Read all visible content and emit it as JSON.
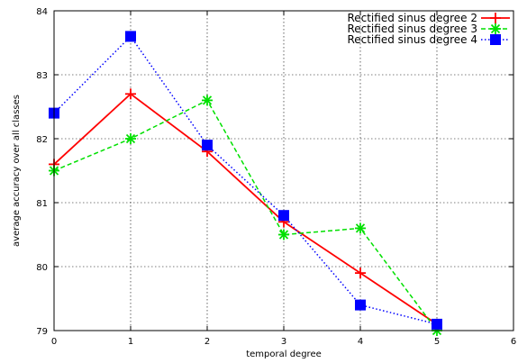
{
  "chart_data": {
    "type": "line",
    "xlabel": "temporal degree",
    "ylabel": "average accuracy over all classes",
    "xlim": [
      0,
      6
    ],
    "ylim": [
      79,
      84
    ],
    "xticks": [
      "0",
      "1",
      "2",
      "3",
      "4",
      "5",
      "6"
    ],
    "yticks": [
      "79",
      "80",
      "81",
      "82",
      "83",
      "84"
    ],
    "grid": true,
    "legend_position": "top-right",
    "series": [
      {
        "name": "Rectified sinus degree 2",
        "color": "#ff0000",
        "line_style": "solid",
        "marker": "plus",
        "x": [
          0,
          1,
          2,
          3,
          4,
          5
        ],
        "y": [
          81.6,
          82.7,
          81.8,
          80.7,
          79.9,
          79.1
        ]
      },
      {
        "name": "Rectified sinus degree 3",
        "color": "#00e000",
        "line_style": "dashed",
        "marker": "star",
        "x": [
          0,
          1,
          2,
          3,
          4,
          5
        ],
        "y": [
          81.5,
          82.0,
          82.6,
          80.5,
          80.6,
          79.0
        ]
      },
      {
        "name": "Rectified sinus degree 4",
        "color": "#0000ff",
        "line_style": "dotted",
        "marker": "square",
        "x": [
          0,
          1,
          2,
          3,
          4,
          5
        ],
        "y": [
          82.4,
          83.6,
          81.9,
          80.8,
          79.4,
          79.1
        ]
      }
    ]
  }
}
